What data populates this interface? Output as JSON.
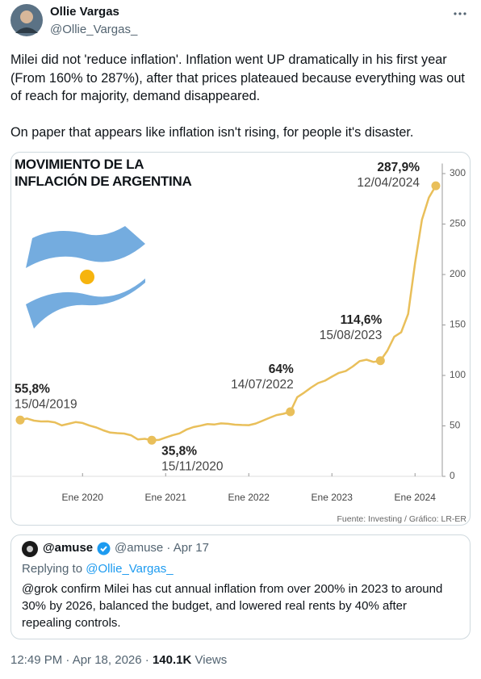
{
  "author": {
    "name": "Ollie Vargas",
    "handle": "@Ollie_Vargas_"
  },
  "text": "Milei did not 'reduce inflation'. Inflation went UP dramatically in his first year (From 160% to 287%), after that prices plateaued because everything was out of reach for majority, demand disappeared.\n\nOn paper that appears like inflation isn't rising, for people it's disaster.",
  "chart_data": {
    "type": "line",
    "title": "MOVIMIENTO DE LA INFLACIÓN DE ARGENTINA",
    "color": "#e9bf5a",
    "values": [
      55.8,
      57.3,
      55.2,
      54.4,
      54.5,
      53.5,
      50.5,
      52.1,
      53.8,
      52.9,
      50.3,
      48.4,
      45.6,
      43.4,
      42.8,
      42.4,
      40.7,
      36.6,
      37.2,
      35.8,
      36.1,
      38.5,
      40.7,
      42.6,
      46.3,
      48.8,
      50.2,
      51.8,
      51.4,
      52.5,
      52.1,
      51.2,
      50.9,
      50.7,
      52.3,
      55.1,
      58.0,
      60.7,
      62.0,
      64,
      78.5,
      83.0,
      88.0,
      92.4,
      94.8,
      98.8,
      102.5,
      104.3,
      108.8,
      114.2,
      115.6,
      113.4,
      114.6,
      124.4,
      138.3,
      142.7,
      160.9,
      211.4,
      254.2,
      276.2,
      287.9
    ],
    "ylim": [
      0,
      310
    ],
    "yticks": [
      0,
      50,
      100,
      150,
      200,
      250,
      300
    ],
    "xticks": [
      {
        "value": 9,
        "label": "Ene 2020"
      },
      {
        "value": 21,
        "label": "Ene 2021"
      },
      {
        "value": 33,
        "label": "Ene 2022"
      },
      {
        "value": 45,
        "label": "Ene 2023"
      },
      {
        "value": 57,
        "label": "Ene 2024"
      }
    ],
    "annotations": [
      {
        "value": 55.8,
        "label": "55,8%",
        "date": "15/04/2019"
      },
      {
        "value": 35.8,
        "label": "35,8%",
        "date": "15/11/2020"
      },
      {
        "value": 64,
        "label": "64%",
        "date": "14/07/2022"
      },
      {
        "value": 114.6,
        "label": "114,6%",
        "date": "15/08/2023"
      },
      {
        "value": 287.9,
        "label": "287,9%",
        "date": "12/04/2024"
      }
    ],
    "source": "Fuente: Investing / Gráfico: LR-ER"
  },
  "quote": {
    "name": "@amuse",
    "meta": "@amuse · Apr 17",
    "replying_prefix": "Replying to",
    "replying_to": "@Ollie_Vargas_",
    "text": "@grok confirm Milei has cut annual inflation from over 200% in 2023 to around 30% by 2026, balanced the budget, and lowered real rents by 40% after repealing controls."
  },
  "footer": {
    "timestamp": "12:49 PM · Apr 18, 2026 ·",
    "views": "140.1K",
    "views_label": "Views"
  }
}
